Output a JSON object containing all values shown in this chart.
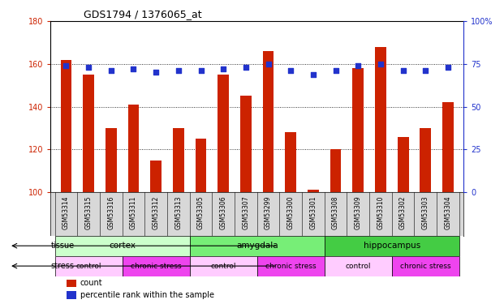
{
  "title": "GDS1794 / 1376065_at",
  "samples": [
    "GSM53314",
    "GSM53315",
    "GSM53316",
    "GSM53311",
    "GSM53312",
    "GSM53313",
    "GSM53305",
    "GSM53306",
    "GSM53307",
    "GSM53299",
    "GSM53300",
    "GSM53301",
    "GSM53308",
    "GSM53309",
    "GSM53310",
    "GSM53302",
    "GSM53303",
    "GSM53304"
  ],
  "counts": [
    162,
    155,
    130,
    141,
    115,
    130,
    125,
    155,
    145,
    166,
    128,
    101,
    120,
    158,
    168,
    126,
    130,
    142
  ],
  "percentiles": [
    74,
    73,
    71,
    72,
    70,
    71,
    71,
    72,
    73,
    75,
    71,
    69,
    71,
    74,
    75,
    71,
    71,
    73
  ],
  "ymin": 100,
  "ymax": 180,
  "yticks": [
    100,
    120,
    140,
    160,
    180
  ],
  "y2min": 0,
  "y2max": 100,
  "y2ticks": [
    0,
    25,
    50,
    75,
    100
  ],
  "bar_color": "#cc2200",
  "dot_color": "#2233cc",
  "tissue_groups": [
    {
      "label": "cortex",
      "start": 0,
      "end": 6,
      "color": "#ccffcc"
    },
    {
      "label": "amygdala",
      "start": 6,
      "end": 12,
      "color": "#77ee77"
    },
    {
      "label": "hippocampus",
      "start": 12,
      "end": 18,
      "color": "#44cc44"
    }
  ],
  "stress_groups": [
    {
      "label": "control",
      "start": 0,
      "end": 3,
      "color": "#ffccff"
    },
    {
      "label": "chronic stress",
      "start": 3,
      "end": 6,
      "color": "#ee44ee"
    },
    {
      "label": "control",
      "start": 6,
      "end": 9,
      "color": "#ffccff"
    },
    {
      "label": "chronic stress",
      "start": 9,
      "end": 12,
      "color": "#ee44ee"
    },
    {
      "label": "control",
      "start": 12,
      "end": 15,
      "color": "#ffccff"
    },
    {
      "label": "chronic stress",
      "start": 15,
      "end": 18,
      "color": "#ee44ee"
    }
  ],
  "plot_bg": "#ffffff",
  "label_area_bg": "#d8d8d8"
}
